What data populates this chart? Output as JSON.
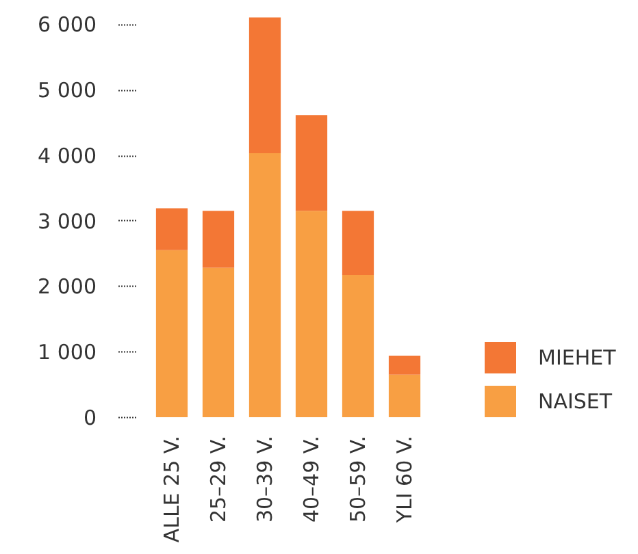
{
  "chart_data": {
    "type": "bar",
    "stacked": true,
    "categories": [
      "ALLE 25 V.",
      "25–29 V.",
      "30–39 V.",
      "40–49 V.",
      "50–59 V.",
      "YLI 60 V."
    ],
    "series": [
      {
        "name": "NAISET",
        "color": "#f89f43",
        "values": [
          2550,
          2280,
          4030,
          3150,
          2170,
          650
        ]
      },
      {
        "name": "MIEHET",
        "color": "#f37735",
        "values": [
          640,
          870,
          2070,
          1460,
          980,
          290
        ]
      }
    ],
    "ylim": [
      0,
      6100
    ],
    "yticks": [
      0,
      {
        "value": 1000,
        "label": "1 000"
      },
      {
        "value": 2000,
        "label": "2 000"
      },
      {
        "value": 3000,
        "label": "3 000"
      },
      {
        "value": 4000,
        "label": "4 000"
      },
      {
        "value": 5000,
        "label": "5 000"
      },
      {
        "value": 6000,
        "label": "6 000"
      }
    ],
    "legend": "bottom right"
  }
}
